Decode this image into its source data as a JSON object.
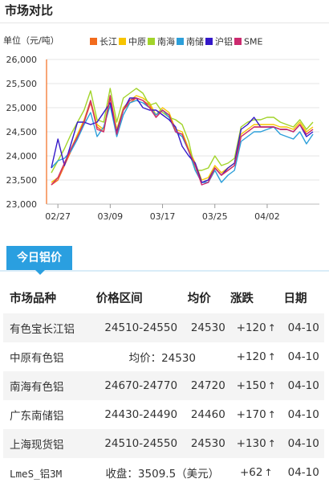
{
  "page": {
    "section_title": "市场对比",
    "tab_label": "今日铝价"
  },
  "chart_data": {
    "type": "line",
    "ylabel": "单位（元/吨）",
    "ylim": [
      23000,
      26000
    ],
    "yticks": [
      "23,000",
      "23,500",
      "24,000",
      "24,500",
      "25,000",
      "25,500",
      "26,000"
    ],
    "ytick_values": [
      23000,
      23500,
      24000,
      24500,
      25000,
      25500,
      26000
    ],
    "xtick_labels": [
      "02/27",
      "03/09",
      "03/17",
      "03/25",
      "04/02"
    ],
    "xtick_index": [
      1,
      9,
      17,
      25,
      33
    ],
    "x_count": 41,
    "legend_position": "top",
    "series": [
      {
        "name": "长江",
        "color": "#f26b1d",
        "values": [
          23400,
          23500,
          23800,
          24100,
          24400,
          24700,
          25100,
          24600,
          24500,
          25200,
          24500,
          24950,
          25100,
          25200,
          25150,
          25050,
          24800,
          24950,
          24850,
          24500,
          24450,
          24100,
          23800,
          23450,
          23500,
          23750,
          23600,
          23700,
          23800,
          24400,
          24500,
          24600,
          24600,
          24600,
          24600,
          24550,
          24550,
          24500,
          24650,
          24450,
          24550
        ]
      },
      {
        "name": "中原",
        "color": "#f7c400",
        "values": [
          23450,
          23550,
          23850,
          24150,
          24450,
          24750,
          25150,
          24650,
          24550,
          25250,
          24550,
          25000,
          25150,
          25250,
          25200,
          25100,
          24850,
          25000,
          24900,
          24550,
          24500,
          24150,
          23850,
          23500,
          23550,
          23800,
          23650,
          23750,
          23850,
          24450,
          24550,
          24650,
          24650,
          24650,
          24650,
          24600,
          24600,
          24550,
          24700,
          24500,
          24600
        ]
      },
      {
        "name": "南海",
        "color": "#a2d42a",
        "values": [
          23650,
          23900,
          24150,
          24450,
          24700,
          24950,
          25350,
          24750,
          24700,
          25400,
          24700,
          25200,
          25300,
          25400,
          25300,
          25050,
          25100,
          24900,
          24800,
          24750,
          24650,
          24300,
          23700,
          23700,
          23750,
          24000,
          23800,
          23850,
          23950,
          24600,
          24700,
          24750,
          24750,
          24800,
          24800,
          24700,
          24650,
          24600,
          24750,
          24550,
          24700
        ]
      },
      {
        "name": "南储",
        "color": "#2c9fda",
        "values": [
          23750,
          23900,
          23950,
          24100,
          24350,
          24650,
          24900,
          24400,
          24600,
          25050,
          24400,
          24850,
          25100,
          25150,
          25100,
          25000,
          24850,
          24950,
          24800,
          24500,
          24400,
          24100,
          23700,
          23450,
          23450,
          23700,
          23450,
          23600,
          23700,
          24300,
          24400,
          24500,
          24500,
          24550,
          24600,
          24450,
          24400,
          24350,
          24500,
          24250,
          24450
        ]
      },
      {
        "name": "沪铝",
        "color": "#3418c9",
        "values": [
          23750,
          24350,
          23800,
          24250,
          24700,
          24700,
          24650,
          24700,
          24900,
          25100,
          24500,
          24950,
          25200,
          25200,
          25000,
          24950,
          24950,
          24850,
          24750,
          24600,
          24200,
          24000,
          23850,
          23450,
          23500,
          23750,
          23600,
          23750,
          23850,
          24550,
          24650,
          24800,
          24600,
          24600,
          24600,
          24550,
          24550,
          24500,
          24650,
          24400,
          24500
        ]
      },
      {
        "name": "SME",
        "color": "#cc2b6f",
        "values": [
          23400,
          23550,
          23850,
          24150,
          24400,
          24700,
          25150,
          24550,
          24500,
          25250,
          24450,
          24950,
          25150,
          25200,
          25150,
          25000,
          24800,
          24950,
          24850,
          24500,
          24450,
          24100,
          23800,
          23400,
          23450,
          23750,
          23600,
          23700,
          23800,
          24400,
          24500,
          24600,
          24600,
          24600,
          24600,
          24550,
          24550,
          24500,
          24650,
          24450,
          24550
        ]
      }
    ]
  },
  "table": {
    "headers": [
      "市场品种",
      "价格区间",
      "均价",
      "涨跌",
      "日期"
    ],
    "rows": [
      {
        "name": "有色宝长江铝",
        "range": "24510-24550",
        "avg": "24530",
        "change": "+120",
        "date": "04-10"
      },
      {
        "name": "中原有色铝",
        "merged": "均价：24530",
        "change": "+120",
        "date": "04-10"
      },
      {
        "name": "南海有色铝",
        "range": "24670-24770",
        "avg": "24720",
        "change": "+150",
        "date": "04-10"
      },
      {
        "name": "广东南储铝",
        "range": "24430-24490",
        "avg": "24460",
        "change": "+170",
        "date": "04-10"
      },
      {
        "name": "上海现货铝",
        "range": "24510-24550",
        "avg": "24530",
        "change": "+130",
        "date": "04-10"
      },
      {
        "name": "LmeS_铝3M",
        "merged": "收盘：3509.5（美元）",
        "change": "+62",
        "date": "04-10",
        "mono": true
      }
    ],
    "arrow_glyph": "↑"
  }
}
